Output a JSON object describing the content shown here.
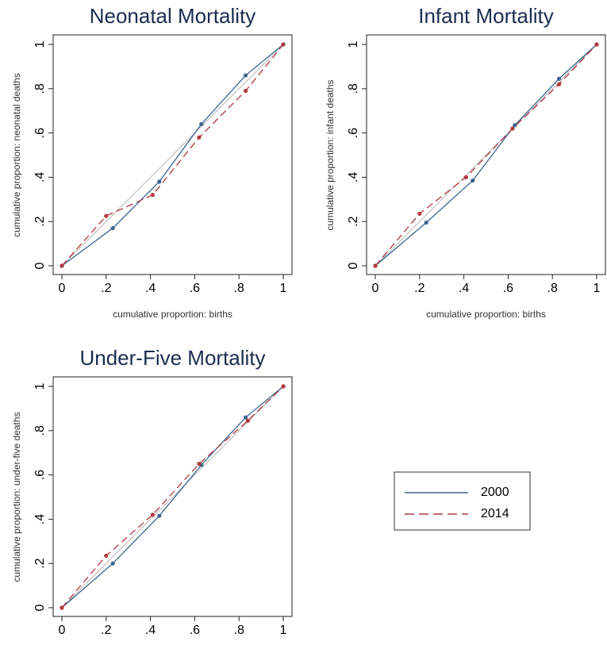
{
  "chart_data": [
    {
      "type": "line",
      "title": "Neonatal Mortality",
      "xlabel": "cumulative proportion: births",
      "ylabel": "cumulative proportion: neonatal deaths",
      "xlim": [
        0,
        1
      ],
      "ylim": [
        0,
        1
      ],
      "xticks": [
        0,
        {
          "value": 0.2,
          "label": ".2"
        },
        {
          "value": 0.4,
          "label": ".4"
        },
        {
          "value": 0.6,
          "label": ".6"
        },
        {
          "value": 0.8,
          "label": ".8"
        },
        1
      ],
      "yticks": [
        0,
        {
          "value": 0.2,
          "label": ".2"
        },
        {
          "value": 0.4,
          "label": ".4"
        },
        {
          "value": 0.6,
          "label": ".6"
        },
        {
          "value": 0.8,
          "label": ".8"
        },
        1
      ],
      "series": [
        {
          "name": "2000",
          "color": "#3d6590",
          "x": [
            0,
            0.23,
            0.44,
            0.63,
            0.83,
            1
          ],
          "values": [
            0,
            0.17,
            0.38,
            0.64,
            0.86,
            1
          ]
        },
        {
          "name": "2014",
          "color": "#b0393e",
          "x": [
            0,
            0.2,
            0.41,
            0.62,
            0.83,
            1
          ],
          "values": [
            0,
            0.225,
            0.32,
            0.58,
            0.79,
            1
          ]
        }
      ]
    },
    {
      "type": "line",
      "title": "Infant Mortality",
      "xlabel": "cumulative proportion: births",
      "ylabel": "cumulative proportion: infant deaths",
      "xlim": [
        0,
        1
      ],
      "ylim": [
        0,
        1
      ],
      "xticks": [
        0,
        {
          "value": 0.2,
          "label": ".2"
        },
        {
          "value": 0.4,
          "label": ".4"
        },
        {
          "value": 0.6,
          "label": ".6"
        },
        {
          "value": 0.8,
          "label": ".8"
        },
        1
      ],
      "yticks": [
        0,
        {
          "value": 0.2,
          "label": ".2"
        },
        {
          "value": 0.4,
          "label": ".4"
        },
        {
          "value": 0.6,
          "label": ".6"
        },
        {
          "value": 0.8,
          "label": ".8"
        },
        1
      ],
      "series": [
        {
          "name": "2000",
          "color": "#3d6590",
          "x": [
            0,
            0.23,
            0.44,
            0.63,
            0.83,
            1
          ],
          "values": [
            0,
            0.195,
            0.385,
            0.635,
            0.845,
            1
          ]
        },
        {
          "name": "2014",
          "color": "#b0393e",
          "x": [
            0,
            0.2,
            0.41,
            0.62,
            0.83,
            1
          ],
          "values": [
            0,
            0.235,
            0.4,
            0.62,
            0.82,
            1
          ]
        }
      ]
    },
    {
      "type": "line",
      "title": "Under-Five Mortality",
      "ylabel": "cumulative proportion: under-five deaths",
      "xlim": [
        0,
        1
      ],
      "ylim": [
        0,
        1
      ],
      "xticks": [
        0,
        {
          "value": 0.2,
          "label": ".2"
        },
        {
          "value": 0.4,
          "label": ".4"
        },
        {
          "value": 0.6,
          "label": ".6"
        },
        {
          "value": 0.8,
          "label": ".8"
        },
        1
      ],
      "yticks": [
        0,
        {
          "value": 0.2,
          "label": ".2"
        },
        {
          "value": 0.4,
          "label": ".4"
        },
        {
          "value": 0.6,
          "label": ".6"
        },
        {
          "value": 0.8,
          "label": ".8"
        },
        1
      ],
      "series": [
        {
          "name": "2000",
          "color": "#3d6590",
          "x": [
            0,
            0.23,
            0.44,
            0.63,
            0.83,
            1
          ],
          "values": [
            0,
            0.2,
            0.415,
            0.645,
            0.86,
            1
          ]
        },
        {
          "name": "2014",
          "color": "#b0393e",
          "x": [
            0,
            0.2,
            0.41,
            0.62,
            0.84,
            1
          ],
          "values": [
            0,
            0.235,
            0.42,
            0.65,
            0.845,
            1
          ]
        }
      ]
    }
  ]
}
